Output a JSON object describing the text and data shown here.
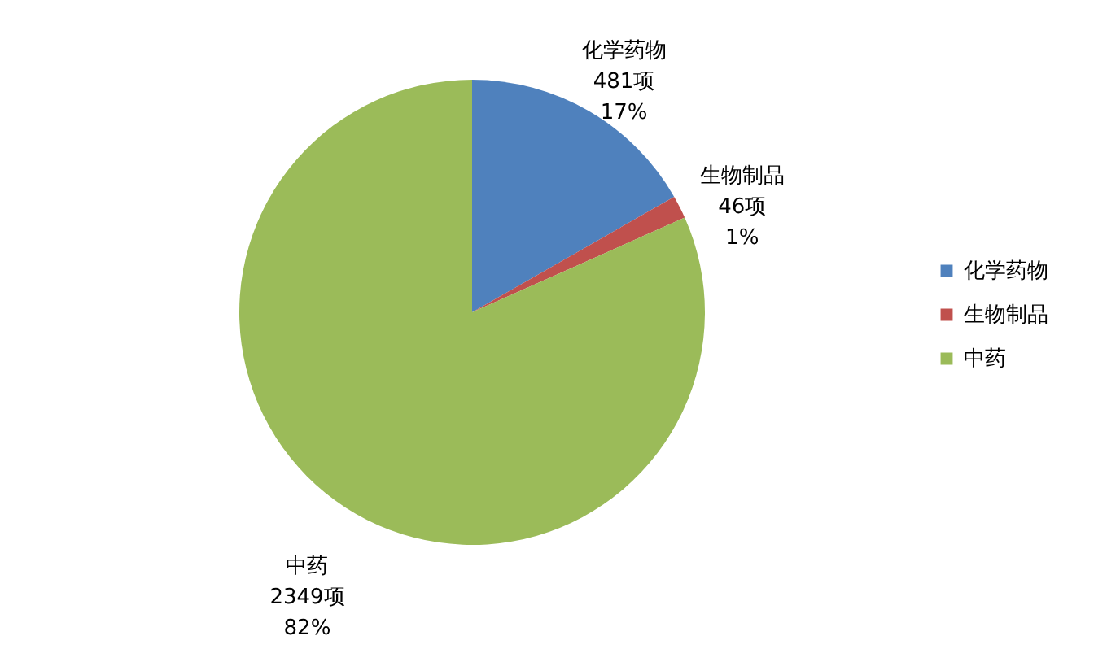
{
  "chart_data": {
    "type": "pie",
    "categories": [
      "化学药物",
      "生物制品",
      "中药"
    ],
    "values": [
      481,
      46,
      2349
    ],
    "colors": [
      "#4f81bd",
      "#c0504d",
      "#9bbb59"
    ],
    "value_labels": [
      "481项\n17%",
      "46项\n1%",
      "2349项\n82%"
    ],
    "legend": "right"
  }
}
